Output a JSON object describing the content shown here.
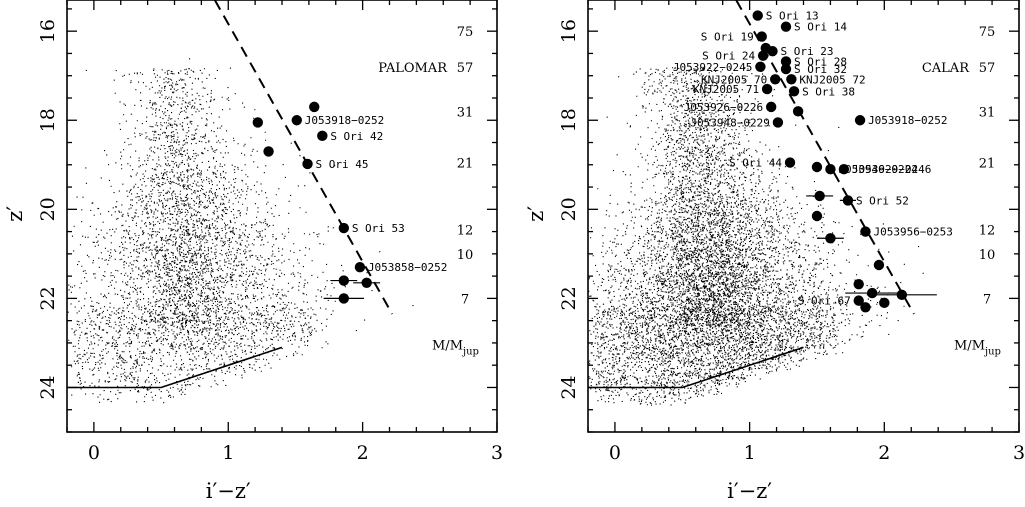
{
  "chart_data": [
    {
      "type": "scatter",
      "title": "PALOMAR",
      "xlabel": "i′−z′",
      "ylabel": "z′",
      "xlim": [
        -0.2,
        3.0
      ],
      "ylim": [
        25.0,
        15.3
      ],
      "y_inverted": true,
      "xticks": [
        0,
        1,
        2,
        3
      ],
      "yticks": [
        16,
        18,
        20,
        22,
        24
      ],
      "grid": false,
      "background_field": {
        "center_x": 0.72,
        "center_y": 21.6,
        "density": "medium"
      },
      "completeness_limit": [
        [
          -0.2,
          24.0
        ],
        [
          0.5,
          24.0
        ],
        [
          1.4,
          23.1
        ]
      ],
      "isochrone_line": [
        [
          0.9,
          15.3
        ],
        [
          2.22,
          22.35
        ]
      ],
      "mass_labels": [
        {
          "label": "75",
          "z": 16.0
        },
        {
          "label": "57",
          "z": 16.8
        },
        {
          "label": "31",
          "z": 17.8
        },
        {
          "label": "21",
          "z": 18.95
        },
        {
          "label": "12",
          "z": 20.45
        },
        {
          "label": "10",
          "z": 21.0
        },
        {
          "label": "7",
          "z": 22.0
        }
      ],
      "mass_unit": "M/M",
      "mass_unit_sub": "jup",
      "points": [
        {
          "x": 1.64,
          "y": 17.7,
          "label": ""
        },
        {
          "x": 1.22,
          "y": 18.05,
          "label": ""
        },
        {
          "x": 1.51,
          "y": 18.0,
          "label": "J053918−0252"
        },
        {
          "x": 1.7,
          "y": 18.35,
          "label": "S Ori 42"
        },
        {
          "x": 1.3,
          "y": 18.7,
          "label": ""
        },
        {
          "x": 1.59,
          "y": 18.98,
          "label": "S Ori 45"
        },
        {
          "x": 1.86,
          "y": 20.42,
          "label": "S Ori 53"
        },
        {
          "x": 1.98,
          "y": 21.3,
          "label": "J053858−0252"
        },
        {
          "x": 1.86,
          "y": 21.6,
          "xerr": 0.1,
          "label": ""
        },
        {
          "x": 2.03,
          "y": 21.65,
          "xerr": 0.1,
          "label": ""
        },
        {
          "x": 1.86,
          "y": 22.0,
          "xerr": 0.15,
          "label": ""
        }
      ]
    },
    {
      "type": "scatter",
      "title": "CALAR",
      "xlabel": "i′−z′",
      "ylabel": "z′",
      "xlim": [
        -0.2,
        3.0
      ],
      "ylim": [
        25.0,
        15.3
      ],
      "y_inverted": true,
      "xticks": [
        0,
        1,
        2,
        3
      ],
      "yticks": [
        16,
        18,
        20,
        22,
        24
      ],
      "grid": false,
      "background_field": {
        "center_x": 0.75,
        "center_y": 22.2,
        "density": "high"
      },
      "completeness_limit": [
        [
          -0.2,
          24.0
        ],
        [
          0.5,
          24.0
        ],
        [
          1.4,
          23.1
        ]
      ],
      "isochrone_line": [
        [
          0.9,
          15.3
        ],
        [
          2.22,
          22.35
        ]
      ],
      "mass_labels": [
        {
          "label": "75",
          "z": 16.0
        },
        {
          "label": "57",
          "z": 16.8
        },
        {
          "label": "31",
          "z": 17.8
        },
        {
          "label": "21",
          "z": 18.95
        },
        {
          "label": "12",
          "z": 20.45
        },
        {
          "label": "10",
          "z": 21.0
        },
        {
          "label": "7",
          "z": 22.0
        }
      ],
      "mass_unit": "M/M",
      "mass_unit_sub": "jup",
      "points": [
        {
          "x": 1.06,
          "y": 15.65,
          "label": "S Ori 13"
        },
        {
          "x": 1.27,
          "y": 15.9,
          "label": "S Ori 14"
        },
        {
          "x": 1.09,
          "y": 16.12,
          "label": "S Ori 19",
          "side": "left"
        },
        {
          "x": 1.12,
          "y": 16.38,
          "label": ""
        },
        {
          "x": 1.17,
          "y": 16.45,
          "label": "S Ori 23"
        },
        {
          "x": 1.1,
          "y": 16.55,
          "label": "S Ori 24",
          "side": "left"
        },
        {
          "x": 1.27,
          "y": 16.68,
          "label": "S Ori 28"
        },
        {
          "x": 1.08,
          "y": 16.8,
          "label": "J053922−0245",
          "side": "left"
        },
        {
          "x": 1.27,
          "y": 16.85,
          "label": "S Ori 32"
        },
        {
          "x": 1.19,
          "y": 17.08,
          "label": "KNJ2005 70",
          "side": "left"
        },
        {
          "x": 1.31,
          "y": 17.08,
          "label": "KNJ2005 72"
        },
        {
          "x": 1.13,
          "y": 17.3,
          "label": "KNJ2005 71",
          "side": "left"
        },
        {
          "x": 1.33,
          "y": 17.35,
          "label": "S Ori 38"
        },
        {
          "x": 1.16,
          "y": 17.7,
          "label": "J053926−0226",
          "side": "left"
        },
        {
          "x": 1.36,
          "y": 17.8,
          "label": ""
        },
        {
          "x": 1.21,
          "y": 18.05,
          "label": "J053948−0229",
          "side": "left"
        },
        {
          "x": 1.82,
          "y": 18.0,
          "label": "J053918−0252"
        },
        {
          "x": 1.3,
          "y": 18.95,
          "label": "S Ori 44",
          "side": "left"
        },
        {
          "x": 1.5,
          "y": 19.05,
          "label": ""
        },
        {
          "x": 1.6,
          "y": 19.1,
          "label": "J053946−0224"
        },
        {
          "x": 1.7,
          "y": 19.1,
          "label": "J053929−0246"
        },
        {
          "x": 1.52,
          "y": 19.7,
          "xerr": 0.1,
          "label": ""
        },
        {
          "x": 1.73,
          "y": 19.8,
          "xerr": 0.06,
          "label": "S Ori 52"
        },
        {
          "x": 1.5,
          "y": 20.15,
          "label": ""
        },
        {
          "x": 1.6,
          "y": 20.65,
          "xerr": 0.1,
          "label": ""
        },
        {
          "x": 1.86,
          "y": 20.5,
          "label": "J053956−0253"
        },
        {
          "x": 1.96,
          "y": 21.25,
          "label": ""
        },
        {
          "x": 1.81,
          "y": 21.68,
          "label": ""
        },
        {
          "x": 1.91,
          "y": 21.88,
          "xerr": 0.2,
          "label": ""
        },
        {
          "x": 2.13,
          "y": 21.92,
          "xerr": 0.26,
          "label": ""
        },
        {
          "x": 1.81,
          "y": 22.05,
          "label": "S Ori 67",
          "side": "left"
        },
        {
          "x": 1.86,
          "y": 22.2,
          "label": ""
        },
        {
          "x": 2.0,
          "y": 22.1,
          "label": ""
        }
      ]
    }
  ]
}
